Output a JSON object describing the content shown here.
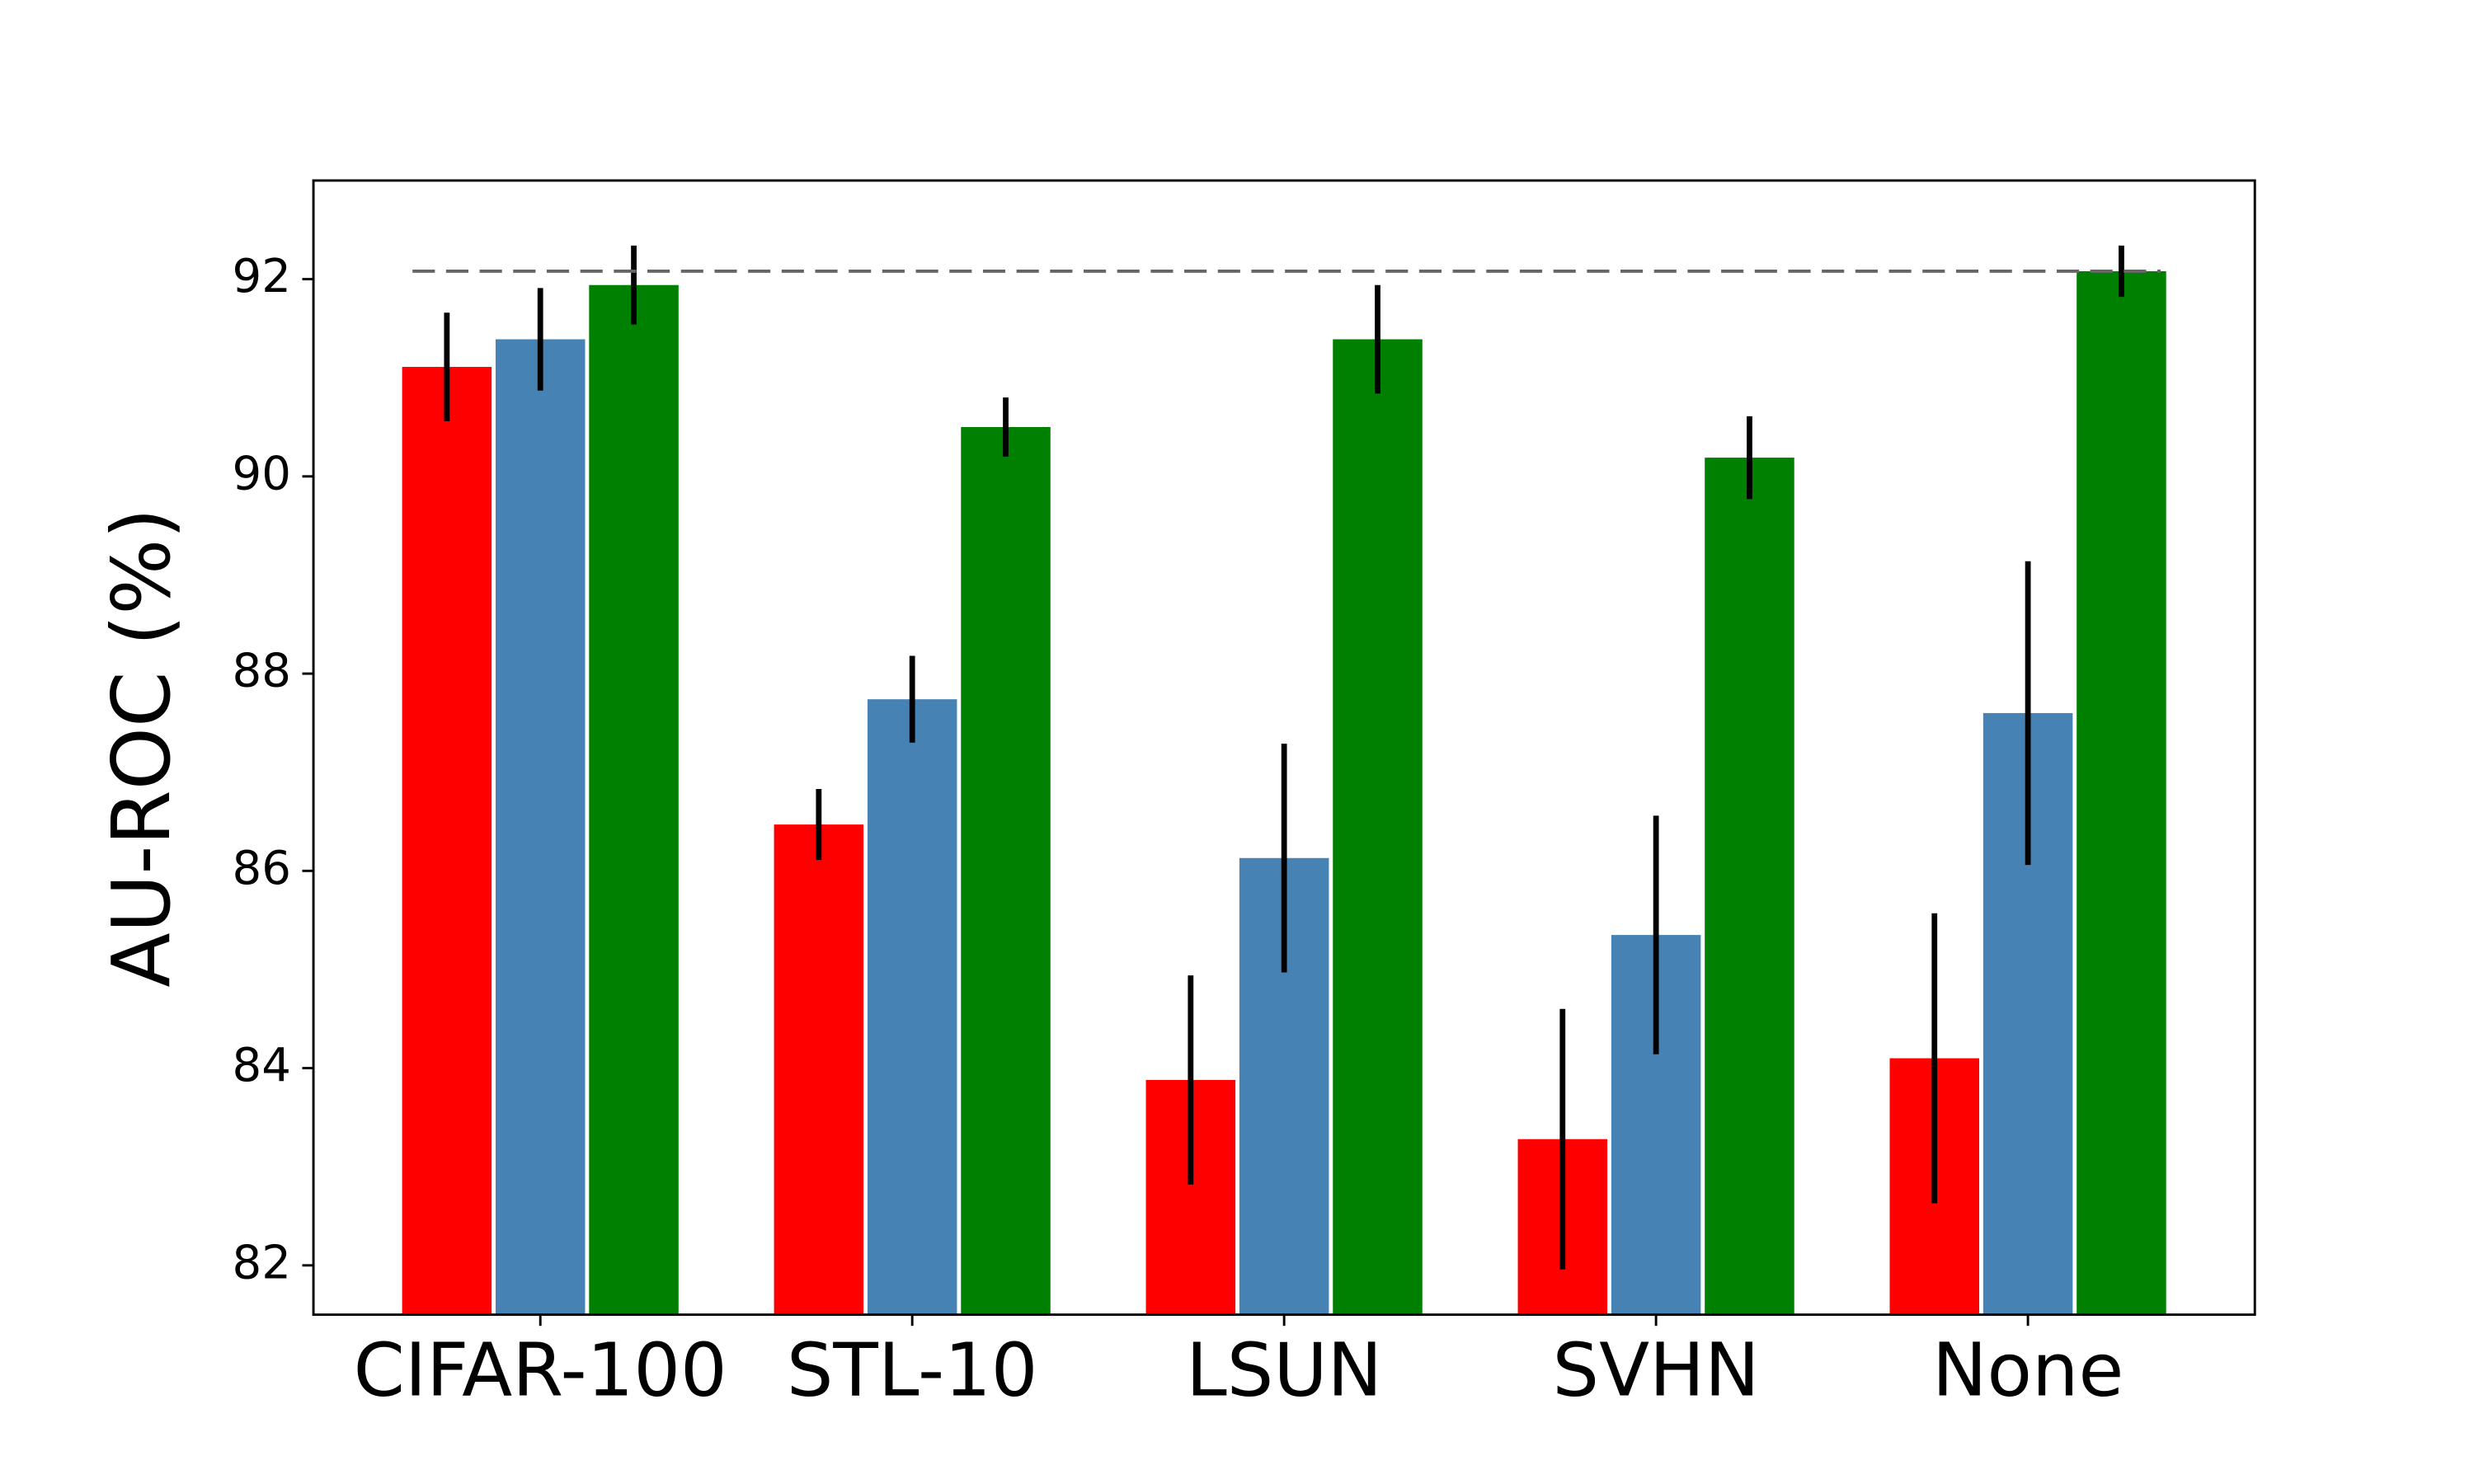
{
  "chart_data": {
    "type": "bar",
    "y_label": "AU-ROC (%)",
    "categories": [
      "CIFAR-100",
      "STL-10",
      "LSUN",
      "SVHN",
      "None"
    ],
    "series": [
      {
        "color": "#ff0000",
        "values": [
          91.11,
          86.47,
          83.88,
          83.28,
          84.1
        ],
        "errors": [
          0.55,
          0.36,
          1.06,
          1.32,
          1.47
        ]
      },
      {
        "color": "#4682b4",
        "values": [
          91.39,
          87.74,
          86.13,
          85.35,
          87.6
        ],
        "errors": [
          0.52,
          0.44,
          1.16,
          1.21,
          1.54
        ]
      },
      {
        "color": "#008000",
        "values": [
          91.94,
          90.5,
          91.39,
          90.19,
          92.08
        ],
        "errors": [
          0.4,
          0.3,
          0.55,
          0.42,
          0.26
        ]
      }
    ],
    "reference_line": 92.08,
    "ylim": [
      81.5,
      93.0
    ],
    "yticks": [
      82,
      84,
      86,
      88,
      90,
      92
    ]
  }
}
